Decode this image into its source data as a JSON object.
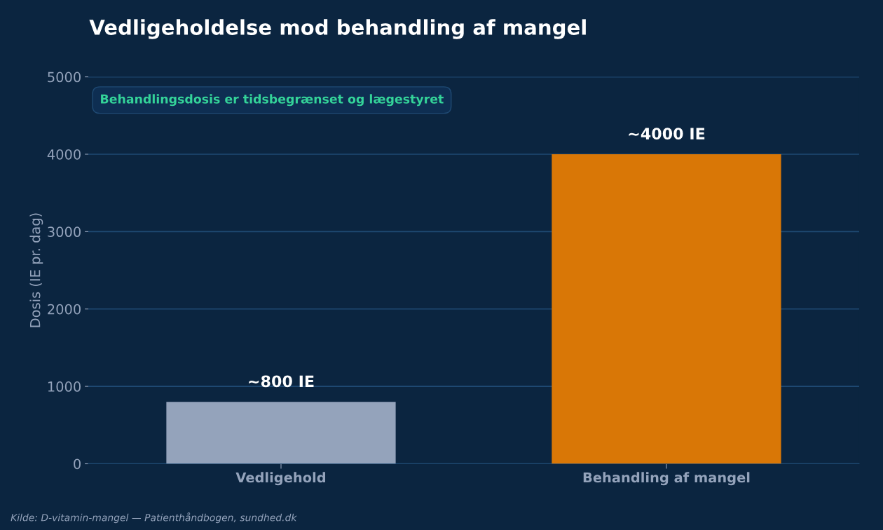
{
  "chart_data": {
    "type": "bar",
    "title": "Vedligeholdelse mod behandling af mangel",
    "ylabel": "Dosis (IE pr. dag)",
    "categories": [
      "Vedligehold",
      "Behandling af mangel"
    ],
    "values": [
      800,
      4000
    ],
    "colors": [
      "#94a3bb",
      "#d97706"
    ],
    "value_labels": [
      "~800 IE",
      "~4000 IE"
    ],
    "ylim": [
      0,
      5000
    ],
    "yticks": [
      0,
      1000,
      2000,
      3000,
      4000,
      5000
    ],
    "grid": "y",
    "annotations": [
      "Behandlingsdosis er tidsbegrænset og lægestyret",
      "Kilde: D-vitamin-mangel — Patienthåndbogen, sundhed.dk"
    ]
  }
}
